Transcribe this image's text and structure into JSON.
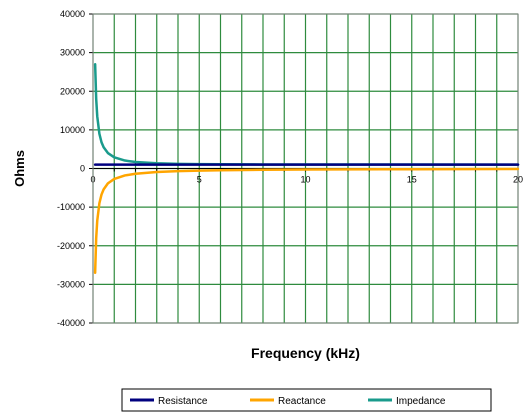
{
  "chart_data": {
    "type": "line",
    "title": "",
    "xlabel": "Frequency (kHz)",
    "ylabel": "Ohms",
    "xlim": [
      0,
      20
    ],
    "ylim": [
      -40000,
      40000
    ],
    "x_ticks": [
      0,
      5,
      10,
      15,
      20
    ],
    "x_tick_labels": [
      "0",
      "5",
      "10",
      "15",
      "20"
    ],
    "x_minor_step": 1,
    "y_ticks": [
      -40000,
      -30000,
      -20000,
      -10000,
      0,
      10000,
      20000,
      30000,
      40000
    ],
    "y_tick_labels": [
      "-40000",
      "-30000",
      "-20000",
      "-10000",
      "0",
      "10000",
      "20000",
      "30000",
      "40000"
    ],
    "grid": true,
    "grid_color": "#2e8b3e",
    "legend_position": "bottom",
    "series": [
      {
        "name": "Resistance",
        "color": "#00007f",
        "x": [
          0.1,
          0.5,
          0.8,
          1.0,
          1.5,
          2,
          3,
          5,
          8,
          10,
          15,
          20
        ],
        "y": [
          1000,
          1000,
          1000,
          1000,
          1000,
          1000,
          1000,
          1000,
          1000,
          1000,
          1000,
          1000
        ]
      },
      {
        "name": "Reactance",
        "color": "#ffa500",
        "x": [
          0.1,
          0.15,
          0.2,
          0.3,
          0.4,
          0.5,
          0.7,
          1.0,
          1.5,
          2,
          3,
          4,
          5,
          6,
          8,
          10,
          15,
          20
        ],
        "y": [
          -27000,
          -18000,
          -13500,
          -9000,
          -6750,
          -5400,
          -3860,
          -2700,
          -1800,
          -1350,
          -900,
          -675,
          -540,
          -450,
          -338,
          -270,
          -180,
          -135
        ]
      },
      {
        "name": "Impedance",
        "color": "#1a9b8c",
        "x": [
          0.1,
          0.15,
          0.2,
          0.3,
          0.4,
          0.5,
          0.7,
          1.0,
          1.5,
          2,
          3,
          4,
          5,
          6,
          8,
          10,
          15,
          20
        ],
        "y": [
          27000,
          18000,
          13500,
          9000,
          6800,
          5500,
          4000,
          2900,
          2060,
          1680,
          1350,
          1200,
          1140,
          1100,
          1050,
          1040,
          1020,
          1010
        ]
      }
    ]
  }
}
